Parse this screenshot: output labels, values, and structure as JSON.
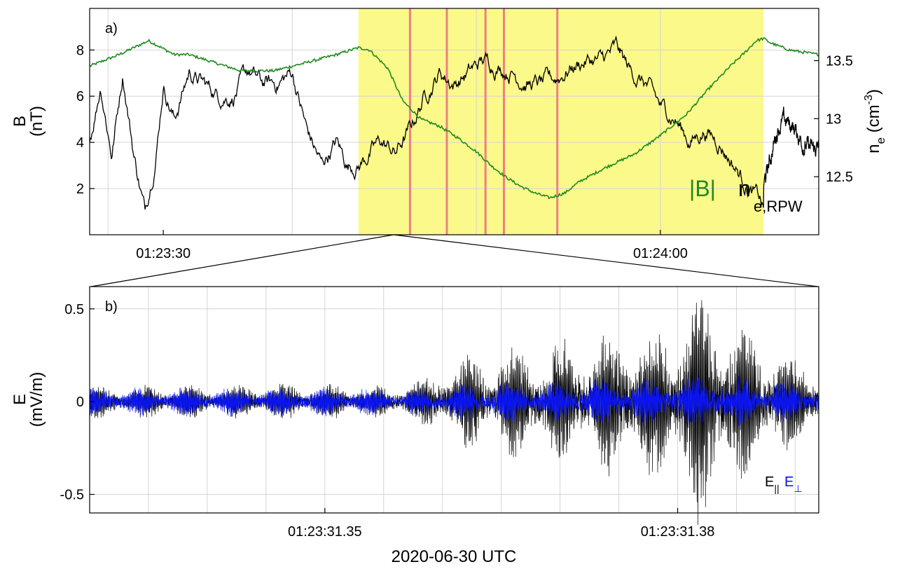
{
  "figure": {
    "xlabel": "2020-06-30 UTC"
  },
  "colors": {
    "ne": "#000000",
    "B": "#1f8a1f",
    "E_par": "#000000",
    "E_perp": "#0a14f0",
    "highlight": "#fbf98a",
    "red_lines": "#ee7f86",
    "grid": "#d4d4d4"
  },
  "chart_data": [
    {
      "type": "line",
      "panel_label": "a)",
      "ylabel_left": [
        "B",
        "(nT)"
      ],
      "ylabel_right": {
        "main": "n",
        "sub": "e",
        "unit_open": " (cm",
        "sup": "-3",
        "unit_close": ")"
      },
      "xticks": [
        "01:23:30",
        "01:24:00"
      ],
      "yticks_left": [
        "2",
        "4",
        "6",
        "8"
      ],
      "yticks_right": [
        "12.5",
        "13",
        "13.5"
      ],
      "ylim_left": [
        0,
        9.8
      ],
      "ylim_right": [
        12.0,
        13.95
      ],
      "x_unit": "seconds after 01:23:00",
      "xlim": [
        29.5,
        49.3
      ],
      "highlight_interval": [
        36.8,
        47.8
      ],
      "red_lines": [
        38.2,
        39.2,
        40.25,
        40.75,
        42.2
      ],
      "series": [
        {
          "name": "|B|",
          "axis": "left",
          "x": [
            29.5,
            30.3,
            31.1,
            31.8,
            32.2,
            32.8,
            33.6,
            34.5,
            35.5,
            36.2,
            36.8,
            37.1,
            37.6,
            38.0,
            38.5,
            39.0,
            39.5,
            40.0,
            40.4,
            40.8,
            41.2,
            41.6,
            42.0,
            42.4,
            42.8,
            43.5,
            44.3,
            45.0,
            45.7,
            46.3,
            46.9,
            47.3,
            47.6,
            47.8,
            48.0,
            48.5,
            49.3
          ],
          "values": [
            7.3,
            7.8,
            8.4,
            7.8,
            7.8,
            7.5,
            7.1,
            7.1,
            7.5,
            7.8,
            8.1,
            8.0,
            7.2,
            5.8,
            5.0,
            4.7,
            4.2,
            3.6,
            3.0,
            2.5,
            2.1,
            1.8,
            1.6,
            1.8,
            2.3,
            2.9,
            3.5,
            4.3,
            5.2,
            6.3,
            7.3,
            7.9,
            8.4,
            8.5,
            8.3,
            8.0,
            7.8
          ]
        },
        {
          "name": "n_e,RPW",
          "axis": "right",
          "x": [
            29.5,
            29.8,
            30.1,
            30.4,
            30.7,
            31.0,
            31.3,
            31.5,
            31.8,
            32.2,
            32.6,
            33.0,
            33.4,
            33.8,
            34.2,
            34.6,
            35.0,
            35.4,
            35.8,
            36.2,
            36.5,
            36.8,
            37.1,
            37.4,
            37.8,
            38.2,
            38.6,
            39.0,
            39.4,
            39.8,
            40.2,
            40.6,
            41.0,
            41.4,
            41.8,
            42.2,
            42.6,
            43.0,
            43.4,
            43.8,
            44.2,
            44.6,
            45.0,
            45.4,
            45.8,
            46.2,
            46.6,
            47.0,
            47.4,
            47.7,
            47.8
          ],
          "values": [
            12.8,
            13.3,
            12.7,
            13.4,
            12.7,
            12.2,
            12.7,
            13.3,
            13.0,
            13.4,
            13.3,
            13.2,
            13.2,
            13.4,
            13.3,
            13.3,
            13.4,
            12.9,
            12.6,
            12.8,
            12.6,
            12.6,
            12.7,
            12.8,
            12.7,
            12.9,
            13.2,
            13.4,
            13.3,
            13.4,
            13.5,
            13.45,
            13.4,
            13.3,
            13.3,
            13.35,
            13.45,
            13.5,
            13.5,
            13.6,
            13.4,
            13.3,
            13.1,
            13.0,
            12.8,
            12.9,
            12.8,
            12.6,
            12.4,
            12.3,
            12.2
          ]
        }
      ],
      "legend": [
        "|B|",
        "n_e,RPW"
      ]
    },
    {
      "type": "line",
      "panel_label": "b)",
      "ylabel": [
        "E",
        "(mV/m)"
      ],
      "xticks": [
        "01:23:31.35",
        "01:23:31.38"
      ],
      "yticks": [
        "0.5",
        "0",
        "-0.5"
      ],
      "ylim": [
        -0.6,
        0.62
      ],
      "x_unit": "seconds after 01:23:31.35",
      "xlim": [
        -0.02,
        0.042
      ],
      "envelope_x": [
        -0.02,
        -0.01,
        0.0,
        0.005,
        0.008,
        0.01,
        0.013,
        0.016,
        0.02,
        0.023,
        0.025,
        0.028,
        0.03,
        0.032,
        0.034,
        0.036,
        0.038,
        0.04,
        0.042
      ],
      "series": [
        {
          "name": "E∥",
          "amplitude": [
            0.07,
            0.07,
            0.08,
            0.07,
            0.09,
            0.15,
            0.22,
            0.25,
            0.26,
            0.3,
            0.35,
            0.3,
            0.4,
            0.52,
            0.4,
            0.3,
            0.27,
            0.2,
            0.15
          ]
        },
        {
          "name": "E⊥",
          "amplitude": [
            0.06,
            0.06,
            0.06,
            0.06,
            0.06,
            0.07,
            0.08,
            0.09,
            0.09,
            0.1,
            0.1,
            0.1,
            0.11,
            0.12,
            0.1,
            0.1,
            0.09,
            0.08,
            0.08
          ]
        }
      ],
      "legend_par": {
        "main": "E",
        "sub": "||"
      },
      "legend_perp": {
        "main": "E",
        "sub": "⊥"
      }
    }
  ]
}
